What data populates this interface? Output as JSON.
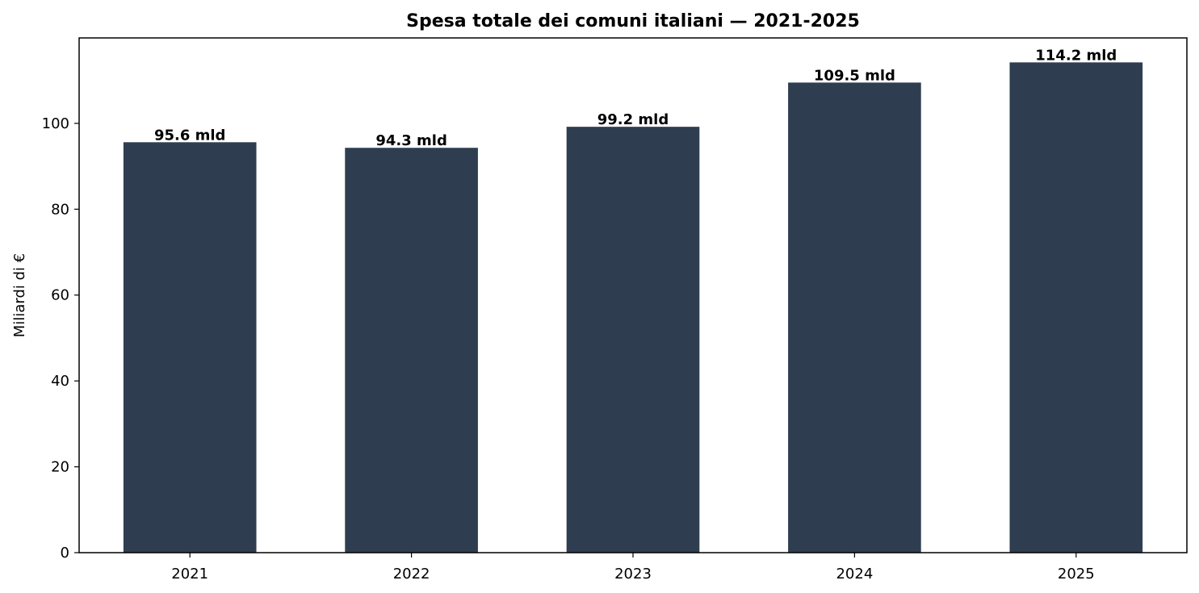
{
  "chart_data": {
    "type": "bar",
    "title": "Spesa totale dei comuni italiani — 2021-2025",
    "xlabel": "",
    "ylabel": "Miliardi di €",
    "categories": [
      "2021",
      "2022",
      "2023",
      "2024",
      "2025"
    ],
    "values": [
      95.6,
      94.3,
      99.2,
      109.5,
      114.2
    ],
    "data_labels": [
      "95.6 mld",
      "94.3 mld",
      "99.2 mld",
      "109.5 mld",
      "114.2 mld"
    ],
    "y_ticks": [
      0,
      20,
      40,
      60,
      80,
      100
    ],
    "ylim": [
      0,
      119.9
    ],
    "grid": false,
    "bar_color": "#2e3e50"
  }
}
